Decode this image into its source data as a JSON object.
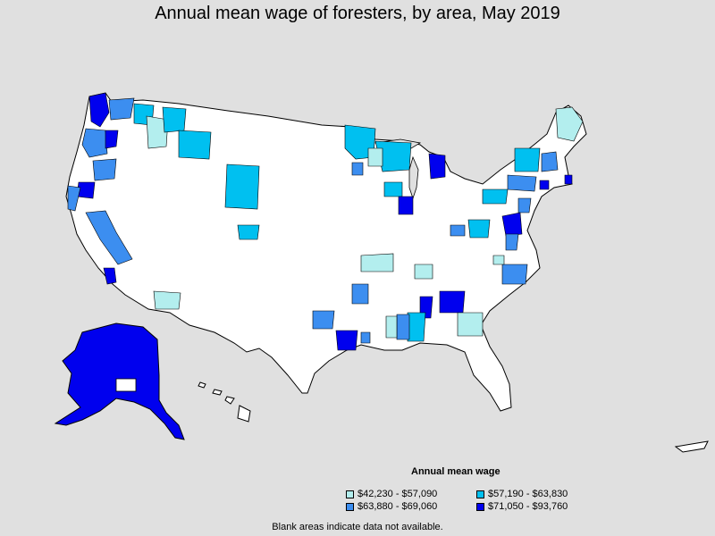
{
  "title": "Annual mean wage of foresters, by area, May 2019",
  "legend": {
    "title": "Annual mean wage",
    "items": [
      {
        "label": "$42,230 - $57,090",
        "color": "#b3eeee"
      },
      {
        "label": "$57,190 - $63,830",
        "color": "#00c0f0"
      },
      {
        "label": "$63,880 - $69,060",
        "color": "#3c8ef0"
      },
      {
        "label": "$71,050 - $93,760",
        "color": "#0000ee"
      }
    ]
  },
  "footnote": "Blank areas indicate data not available.",
  "colors": {
    "background": "#e0e0e0",
    "land": "#ffffff",
    "border": "#000000",
    "tier1": "#b3eeee",
    "tier2": "#00c0f0",
    "tier3": "#3c8ef0",
    "tier4": "#0000ee"
  }
}
